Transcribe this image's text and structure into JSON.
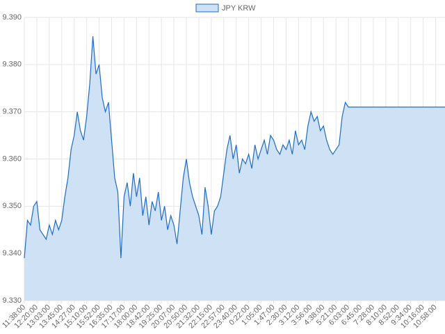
{
  "chart_data": {
    "type": "line",
    "area": true,
    "grid": true,
    "legend": "top",
    "ylim": [
      9.33,
      9.39
    ],
    "yticks": [
      {
        "value": 9.33,
        "label": "9.330"
      },
      {
        "value": 9.34,
        "label": "9.340"
      },
      {
        "value": 9.35,
        "label": "9.350"
      },
      {
        "value": 9.36,
        "label": "9.360"
      },
      {
        "value": 9.37,
        "label": "9.370"
      },
      {
        "value": 9.38,
        "label": "9.380"
      },
      {
        "value": 9.39,
        "label": "9.390"
      }
    ],
    "categories": [
      "11:38:00",
      null,
      null,
      null,
      "12:20:00",
      null,
      null,
      null,
      "13:03:00",
      null,
      null,
      null,
      "13:45:00",
      null,
      null,
      null,
      "14:27:00",
      null,
      null,
      null,
      "15:10:00",
      null,
      null,
      null,
      "15:52:00",
      null,
      null,
      null,
      "16:35:00",
      null,
      null,
      null,
      "17:17:00",
      null,
      null,
      null,
      "18:00:00",
      null,
      null,
      null,
      "18:42:00",
      null,
      null,
      null,
      "19:25:00",
      null,
      null,
      null,
      "20:07:00",
      null,
      null,
      null,
      "20:50:00",
      null,
      null,
      null,
      "21:32:00",
      null,
      null,
      null,
      "22:15:00",
      null,
      null,
      null,
      "22:57:00",
      null,
      null,
      null,
      "23:40:00",
      null,
      null,
      null,
      "0:22:00",
      null,
      null,
      null,
      "1:05:00",
      null,
      null,
      null,
      "1:47:00",
      null,
      null,
      null,
      "2:30:00",
      null,
      null,
      null,
      "3:12:00",
      null,
      null,
      null,
      "3:56:00",
      null,
      null,
      null,
      "4:38:00",
      null,
      null,
      null,
      "5:21:00",
      null,
      null,
      null,
      "6:03:00",
      null,
      null,
      null,
      "6:45:00",
      null,
      null,
      null,
      "7:28:00",
      null,
      null,
      null,
      "8:10:00",
      null,
      null,
      null,
      "8:52:00",
      null,
      null,
      null,
      "9:34:00",
      null,
      null,
      null,
      "10:16:00",
      null,
      null,
      null,
      "10:58:00",
      null,
      null,
      null
    ],
    "series": [
      {
        "name": "JPY KRW",
        "color": "#1c6cc8",
        "fill_color": "#cfe1f5",
        "values": [
          9.339,
          9.347,
          9.346,
          9.35,
          9.351,
          9.345,
          9.344,
          9.343,
          9.346,
          9.344,
          9.347,
          9.345,
          9.347,
          9.352,
          9.356,
          9.362,
          9.365,
          9.37,
          9.366,
          9.364,
          9.369,
          9.376,
          9.386,
          9.378,
          9.38,
          9.373,
          9.37,
          9.372,
          9.364,
          9.356,
          9.353,
          9.339,
          9.352,
          9.355,
          9.35,
          9.357,
          9.352,
          9.356,
          9.348,
          9.352,
          9.346,
          9.351,
          9.349,
          9.353,
          9.347,
          9.35,
          9.345,
          9.348,
          9.346,
          9.342,
          9.349,
          9.356,
          9.36,
          9.355,
          9.352,
          9.35,
          9.348,
          9.344,
          9.354,
          9.35,
          9.344,
          9.349,
          9.35,
          9.352,
          9.357,
          9.362,
          9.365,
          9.36,
          9.363,
          9.357,
          9.36,
          9.359,
          9.361,
          9.358,
          9.363,
          9.36,
          9.362,
          9.364,
          9.361,
          9.365,
          9.364,
          9.362,
          9.361,
          9.363,
          9.362,
          9.364,
          9.361,
          9.366,
          9.363,
          9.364,
          9.362,
          9.367,
          9.37,
          9.368,
          9.369,
          9.366,
          9.367,
          9.364,
          9.362,
          9.361,
          9.362,
          9.363,
          9.369,
          9.372,
          9.371,
          9.371,
          9.371,
          9.371,
          9.371,
          9.371,
          9.371,
          9.371,
          9.371,
          9.371,
          9.371,
          9.371,
          9.371,
          9.371,
          9.371,
          9.371,
          9.371,
          9.371,
          9.371,
          9.371,
          9.371,
          9.371,
          9.371,
          9.371,
          9.371,
          9.371,
          9.371,
          9.371,
          9.371,
          9.371,
          9.371,
          9.371
        ]
      }
    ]
  }
}
